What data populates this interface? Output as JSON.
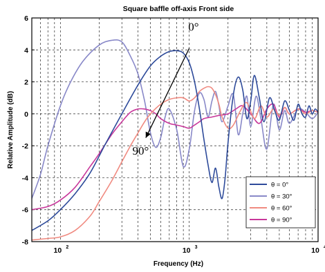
{
  "chart_data": {
    "type": "line",
    "title": "Square baffle off-axis Front side",
    "xlabel": "Frequency (Hz)",
    "ylabel": "Relative Amplitude (dB)",
    "xscale": "log",
    "xlim": [
      60,
      10000
    ],
    "ylim": [
      -8,
      6
    ],
    "yticks": [
      "6",
      "4",
      "2",
      "0",
      "-2",
      "-4",
      "-6",
      "-8"
    ],
    "xticks": [
      {
        "base": "10",
        "exp": "2",
        "value": 100
      },
      {
        "base": "10",
        "exp": "3",
        "value": 1000
      },
      {
        "base": "10",
        "exp": "4",
        "value": 10000
      }
    ],
    "grid": true,
    "legend_position": "bottom-right",
    "series": [
      {
        "name": "θ = 0°",
        "color": "#2d4a9a",
        "x": [
          60,
          80,
          100,
          130,
          170,
          220,
          300,
          400,
          500,
          600,
          700,
          800,
          900,
          1000,
          1100,
          1200,
          1300,
          1400,
          1500,
          1600,
          1700,
          1800,
          1900,
          2000,
          2200,
          2400,
          2600,
          2800,
          3000,
          3200,
          3500,
          3800,
          4200,
          4600,
          5000,
          5500,
          6000,
          6500,
          7000,
          7500,
          8000,
          8500,
          9000,
          9500,
          10000
        ],
        "y": [
          -7.3,
          -6.7,
          -6.0,
          -5.0,
          -3.7,
          -2.0,
          0.0,
          1.8,
          3.0,
          3.6,
          3.9,
          3.95,
          3.8,
          3.2,
          2.0,
          0.3,
          -1.6,
          -3.2,
          -4.3,
          -3.4,
          -4.6,
          -5.3,
          -4.0,
          -1.8,
          1.2,
          2.3,
          1.5,
          -0.3,
          0.8,
          2.4,
          1.0,
          -0.5,
          1.0,
          0.2,
          -0.4,
          0.8,
          0.2,
          -0.4,
          0.6,
          0.0,
          -0.2,
          0.5,
          0.0,
          0.3,
          0.1
        ]
      },
      {
        "name": "θ = 30°",
        "color": "#8888c8",
        "x": [
          60,
          70,
          80,
          100,
          120,
          150,
          200,
          250,
          300,
          350,
          400,
          450,
          500,
          550,
          600,
          650,
          700,
          800,
          900,
          1000,
          1100,
          1200,
          1300,
          1400,
          1500,
          1600,
          1700,
          1800,
          2000,
          2200,
          2400,
          2600,
          2800,
          3000,
          3300,
          3600,
          4000,
          4500,
          5000,
          5500,
          6000,
          7000,
          8000,
          9000,
          10000
        ],
        "y": [
          -5.3,
          -3.8,
          -2.0,
          0.5,
          2.0,
          3.3,
          4.3,
          4.6,
          4.5,
          3.6,
          2.5,
          0.8,
          -1.2,
          -2.1,
          -1.5,
          -0.2,
          0.3,
          -1.0,
          -3.3,
          -2.2,
          0.2,
          1.3,
          0.9,
          -0.2,
          0.8,
          1.4,
          0.5,
          -0.5,
          0.5,
          1.2,
          -1.3,
          0.0,
          1.1,
          -0.8,
          1.1,
          -0.3,
          -2.2,
          0.6,
          -1.0,
          0.2,
          -0.6,
          0.3,
          0.1,
          -0.3,
          0.1
        ]
      },
      {
        "name": "θ = 60°",
        "color": "#f08a80",
        "x": [
          60,
          80,
          100,
          130,
          170,
          200,
          250,
          300,
          350,
          400,
          450,
          500,
          600,
          700,
          800,
          900,
          1000,
          1100,
          1200,
          1300,
          1400,
          1500,
          1600,
          1700,
          1800,
          2000,
          2200,
          2500,
          2800,
          3200,
          3600,
          4000,
          4500,
          5000,
          5500,
          6000,
          7000,
          8000,
          9000,
          10000
        ],
        "y": [
          -7.9,
          -7.8,
          -7.7,
          -7.3,
          -6.4,
          -5.5,
          -4.2,
          -3.0,
          -2.0,
          -1.2,
          -0.5,
          0.0,
          0.6,
          0.9,
          1.0,
          1.0,
          0.8,
          1.0,
          1.4,
          1.6,
          1.7,
          1.6,
          1.2,
          0.6,
          -0.2,
          -0.9,
          -0.7,
          0.2,
          0.7,
          -0.3,
          0.5,
          -0.2,
          0.3,
          -0.1,
          0.4,
          0.0,
          0.3,
          0.0,
          0.2,
          0.1
        ]
      },
      {
        "name": "θ = 90°",
        "color": "#c8379a",
        "x": [
          60,
          80,
          100,
          130,
          170,
          200,
          250,
          300,
          350,
          400,
          450,
          500,
          550,
          600,
          700,
          800,
          900,
          1000,
          1100,
          1200,
          1300,
          1500,
          1700,
          2000,
          2300,
          2600,
          3000,
          3500,
          4000,
          4500,
          5000,
          5500,
          6000,
          7000,
          8000,
          9000,
          10000
        ],
        "y": [
          -6.0,
          -5.8,
          -5.4,
          -4.6,
          -3.3,
          -2.5,
          -1.3,
          -0.5,
          0.1,
          0.3,
          0.3,
          0.2,
          0.0,
          -0.3,
          -0.6,
          -0.7,
          -0.8,
          -0.9,
          -0.7,
          -0.5,
          -0.3,
          -0.2,
          -0.1,
          0.0,
          0.3,
          0.5,
          0.0,
          -0.6,
          0.3,
          0.6,
          -0.2,
          0.4,
          0.0,
          0.3,
          0.1,
          0.2,
          0.1
        ]
      }
    ],
    "annotations": [
      {
        "text": "0°",
        "x": 1080,
        "y": 5.2
      },
      {
        "text": "90°",
        "x": 420,
        "y": -2.55
      }
    ],
    "arrow": {
      "from": {
        "x": 1000,
        "y": 4.1
      },
      "to": {
        "x": 460,
        "y": -1.5
      }
    }
  }
}
